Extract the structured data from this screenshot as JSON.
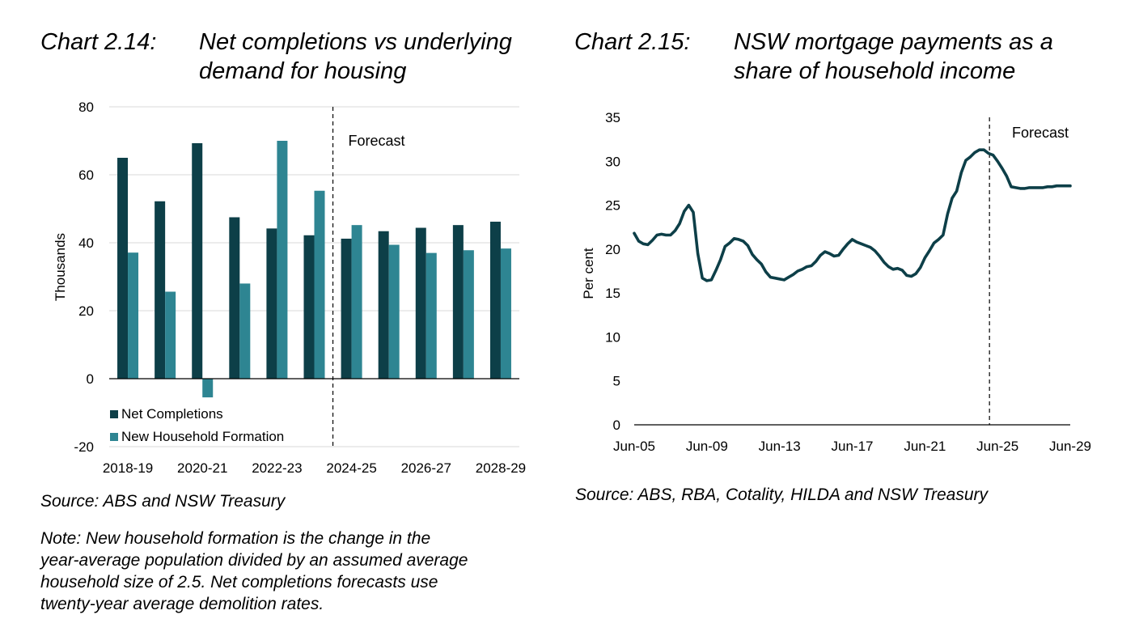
{
  "left": {
    "number": "Chart 2.14:",
    "title_line1": "Net completions vs underlying",
    "title_line2": "demand for housing",
    "source": "Source: ABS and NSW Treasury",
    "note_lines": [
      "Note: New household formation is the change in the",
      "year-average population divided by an assumed average",
      "household size of 2.5. Net completions forecasts use",
      "twenty-year average demolition rates."
    ]
  },
  "right": {
    "number": "Chart 2.15:",
    "title_line1": "NSW mortgage payments as a",
    "title_line2": "share of household income",
    "source": "Source: ABS, RBA, Cotality, HILDA and NSW Treasury"
  },
  "colors": {
    "dark_teal": "#0d3f48",
    "light_teal": "#2e8592",
    "grid": "#d9d9d9"
  },
  "chart_data": [
    {
      "type": "bar",
      "title": "Net completions vs underlying demand for housing",
      "ylabel": "Thousands",
      "ylim": [
        -20,
        80
      ],
      "yticks": [
        -20,
        0,
        20,
        40,
        60,
        80
      ],
      "categories": [
        "2018-19",
        "2019-20",
        "2020-21",
        "2021-22",
        "2022-23",
        "2023-24",
        "2024-25",
        "2025-26",
        "2026-27",
        "2027-28",
        "2028-29"
      ],
      "tick_labels": [
        "2018-19",
        "2020-21",
        "2022-23",
        "2024-25",
        "2026-27",
        "2028-29"
      ],
      "series": [
        {
          "name": "Net Completions",
          "values": [
            65,
            52.2,
            69.3,
            47.5,
            44.2,
            42.2,
            41.2,
            43.4,
            44.4,
            45.2,
            46.2
          ]
        },
        {
          "name": "New Household Formation",
          "values": [
            37.1,
            25.6,
            -5.5,
            28,
            70,
            55.3,
            45.2,
            39.4,
            37,
            37.8,
            38.3
          ]
        }
      ],
      "forecast_label": "Forecast",
      "forecast_start_after": "2023-24",
      "legend": "bottom-left",
      "grid": true
    },
    {
      "type": "line",
      "title": "NSW mortgage payments as a share of household income",
      "ylabel": "Per cent",
      "ylim": [
        0,
        35
      ],
      "yticks": [
        0,
        5,
        10,
        15,
        20,
        25,
        30,
        35
      ],
      "xlim": [
        "Jun-05",
        "Jun-29"
      ],
      "xticks": [
        "Jun-05",
        "Jun-09",
        "Jun-13",
        "Jun-17",
        "Jun-21",
        "Jun-25",
        "Jun-29"
      ],
      "forecast_label": "Forecast",
      "forecast_start": "Jun-25",
      "grid": false,
      "series": [
        {
          "x": [
            "Jun-05",
            "Sep-05",
            "Dec-05",
            "Mar-06",
            "Jun-06",
            "Sep-06",
            "Dec-06",
            "Mar-07",
            "Jun-07",
            "Sep-07",
            "Dec-07",
            "Mar-08",
            "Jun-08",
            "Sep-08",
            "Dec-08",
            "Mar-09",
            "Jun-09",
            "Sep-09",
            "Dec-09",
            "Mar-10",
            "Jun-10",
            "Sep-10",
            "Dec-10",
            "Mar-11",
            "Jun-11",
            "Sep-11",
            "Dec-11",
            "Mar-12",
            "Jun-12",
            "Sep-12",
            "Dec-12",
            "Mar-13",
            "Jun-13",
            "Sep-13",
            "Dec-13",
            "Mar-14",
            "Jun-14",
            "Sep-14",
            "Dec-14",
            "Mar-15",
            "Jun-15",
            "Sep-15",
            "Dec-15",
            "Mar-16",
            "Jun-16",
            "Sep-16",
            "Dec-16",
            "Mar-17",
            "Jun-17",
            "Sep-17",
            "Dec-17",
            "Mar-18",
            "Jun-18",
            "Sep-18",
            "Dec-18",
            "Mar-19",
            "Jun-19",
            "Sep-19",
            "Dec-19",
            "Mar-20",
            "Jun-20",
            "Sep-20",
            "Dec-20",
            "Mar-21",
            "Jun-21",
            "Sep-21",
            "Dec-21",
            "Mar-22",
            "Jun-22",
            "Sep-22",
            "Dec-22",
            "Mar-23",
            "Jun-23",
            "Sep-23",
            "Dec-23",
            "Mar-24",
            "Jun-24",
            "Sep-24",
            "Dec-24",
            "Mar-25",
            "Jun-25",
            "Sep-25",
            "Dec-25",
            "Mar-26",
            "Jun-26",
            "Sep-26",
            "Dec-26",
            "Mar-27",
            "Jun-27",
            "Sep-27",
            "Dec-27",
            "Mar-28",
            "Jun-28",
            "Sep-28",
            "Dec-28",
            "Mar-29",
            "Jun-29"
          ],
          "values": [
            21.8,
            20.9,
            20.6,
            20.5,
            21.0,
            21.6,
            21.7,
            21.6,
            21.6,
            22.1,
            22.9,
            24.3,
            25.0,
            24.2,
            19.5,
            16.7,
            16.4,
            16.5,
            17.6,
            18.8,
            20.3,
            20.7,
            21.2,
            21.1,
            20.9,
            20.4,
            19.4,
            18.8,
            18.3,
            17.4,
            16.8,
            16.7,
            16.6,
            16.5,
            16.8,
            17.1,
            17.5,
            17.7,
            18.0,
            18.1,
            18.6,
            19.3,
            19.7,
            19.5,
            19.2,
            19.3,
            20.0,
            20.6,
            21.1,
            20.8,
            20.6,
            20.4,
            20.2,
            19.8,
            19.2,
            18.5,
            18.0,
            17.7,
            17.8,
            17.6,
            17.0,
            16.9,
            17.2,
            17.9,
            19.0,
            19.8,
            20.7,
            21.1,
            21.6,
            24.0,
            25.8,
            26.6,
            28.7,
            30.1,
            30.5,
            31.0,
            31.3,
            31.3,
            30.9,
            30.7,
            30.0,
            29.2,
            28.3,
            27.1,
            27.0,
            26.9,
            26.9,
            27.0,
            27.0,
            27.0,
            27.0,
            27.1,
            27.1,
            27.2,
            27.2,
            27.2,
            27.2
          ]
        }
      ]
    }
  ]
}
